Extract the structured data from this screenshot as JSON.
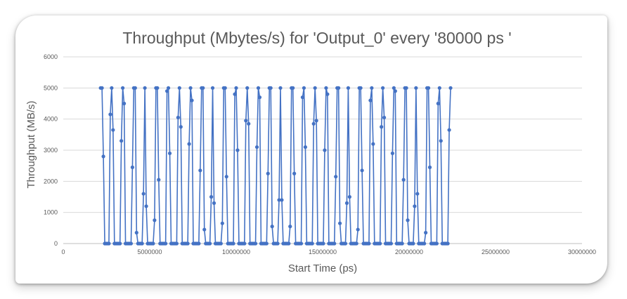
{
  "chart_data": {
    "type": "line",
    "title": "Throughput (Mbytes/s) for 'Output_0' every '80000 ps '",
    "xlabel": "Start Time (ps)",
    "ylabel": "Throughput (MB/s)",
    "xlim": [
      0,
      30000000
    ],
    "ylim": [
      0,
      6000
    ],
    "x_ticks": [
      "0",
      "5000000",
      "10000000",
      "15000000",
      "20000000",
      "25000000",
      "30000000"
    ],
    "y_ticks": [
      "0",
      "1000",
      "2000",
      "3000",
      "4000",
      "5000",
      "6000"
    ],
    "grid": "horizontal",
    "legend": "none",
    "series_color": "#4472c4",
    "x_start": 2160000,
    "x_step": 80000,
    "series": [
      {
        "values": [
          5000,
          5000,
          2800,
          0,
          0,
          0,
          0,
          4150,
          5000,
          3650,
          0,
          0,
          0,
          0,
          0,
          3300,
          5000,
          4500,
          0,
          0,
          0,
          0,
          0,
          2450,
          5000,
          5000,
          350,
          0,
          0,
          0,
          0,
          1600,
          5000,
          1200,
          0,
          0,
          0,
          0,
          0,
          750,
          5000,
          5000,
          2050,
          0,
          0,
          0,
          0,
          0,
          4900,
          5000,
          2900,
          0,
          0,
          0,
          0,
          0,
          4050,
          5000,
          3750,
          0,
          0,
          0,
          0,
          0,
          3200,
          5000,
          4600,
          0,
          0,
          0,
          0,
          0,
          2350,
          5000,
          5000,
          450,
          0,
          0,
          0,
          0,
          1500,
          5000,
          1300,
          0,
          0,
          0,
          0,
          0,
          650,
          5000,
          5000,
          2150,
          0,
          0,
          0,
          0,
          0,
          4800,
          5000,
          3000,
          0,
          0,
          0,
          0,
          0,
          3950,
          5000,
          3850,
          0,
          0,
          0,
          0,
          0,
          3100,
          5000,
          4700,
          0,
          0,
          0,
          0,
          0,
          2250,
          5000,
          5000,
          550,
          0,
          0,
          0,
          0,
          1400,
          5000,
          1400,
          0,
          0,
          0,
          0,
          0,
          550,
          5000,
          5000,
          2250,
          0,
          0,
          0,
          0,
          0,
          4700,
          5000,
          3100,
          0,
          0,
          0,
          0,
          0,
          3850,
          5000,
          3950,
          0,
          0,
          0,
          0,
          0,
          3000,
          5000,
          4800,
          0,
          0,
          0,
          0,
          0,
          2150,
          5000,
          5000,
          650,
          0,
          0,
          0,
          0,
          1300,
          5000,
          1500,
          0,
          0,
          0,
          0,
          0,
          450,
          5000,
          5000,
          2350,
          0,
          0,
          0,
          0,
          0,
          4600,
          5000,
          3200,
          0,
          0,
          0,
          0,
          0,
          3750,
          5000,
          4050,
          0,
          0,
          0,
          0,
          0,
          2900,
          5000,
          4900,
          0,
          0,
          0,
          0,
          0,
          2050,
          5000,
          5000,
          750,
          0,
          0,
          0,
          0,
          1200,
          5000,
          1600,
          0,
          0,
          0,
          0,
          0,
          350,
          5000,
          5000,
          2450,
          0,
          0,
          0,
          0,
          0,
          4500,
          5000,
          3300,
          0,
          0,
          0,
          0,
          0,
          3650,
          5000
        ]
      }
    ]
  }
}
